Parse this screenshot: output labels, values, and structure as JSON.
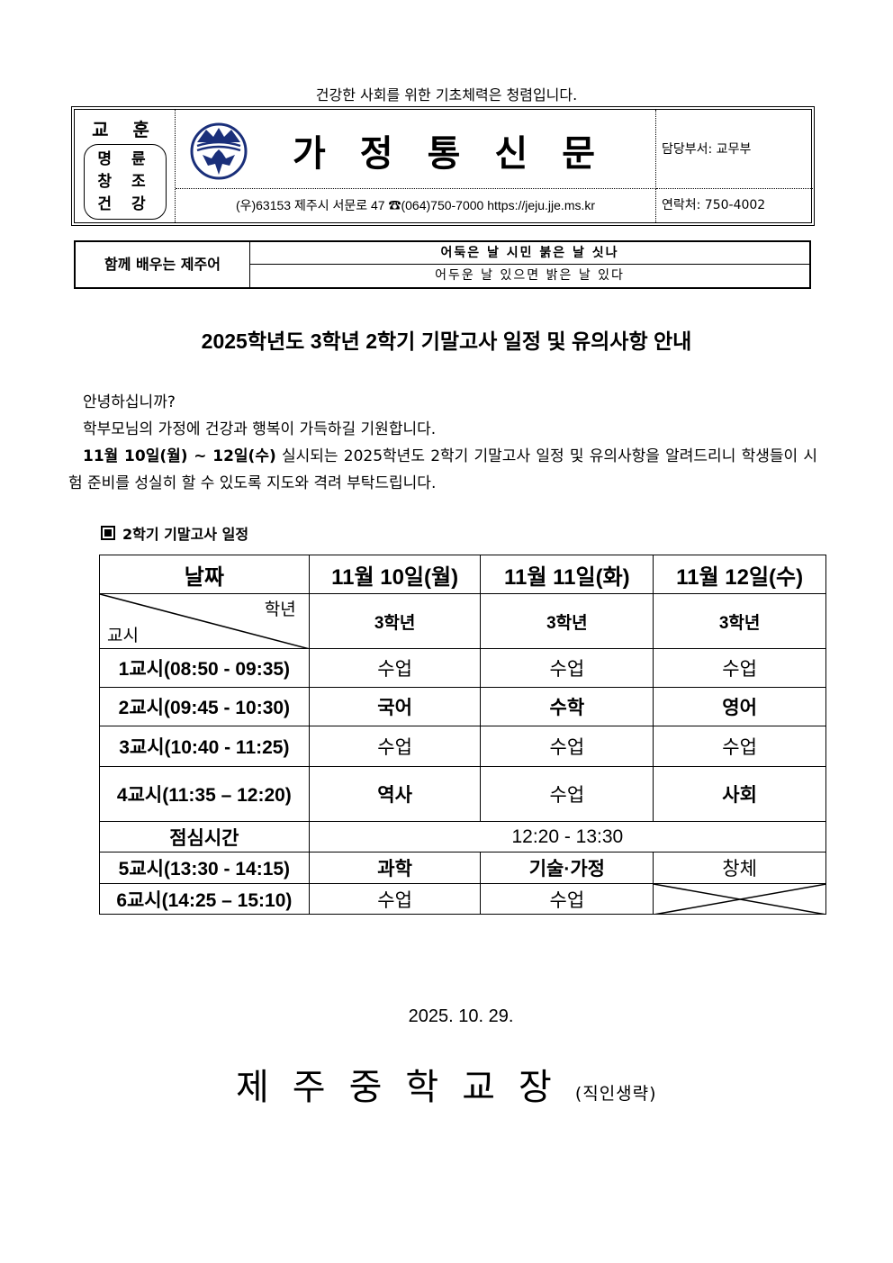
{
  "motto": "건강한 사회를 위한 기초체력은 청렴입니다.",
  "header": {
    "school_motto_label": "교 훈",
    "school_motto": [
      "명 륜",
      "창 조",
      "건 강"
    ],
    "title": "가정통신문",
    "address": "(우)63153 제주시 서문로 47 ☎(064)750-7000   https://jeju.jje.ms.kr",
    "department": "담당부서: 교무부",
    "contact": "연락처: 750-4002",
    "logo_color": "#1a2f7a"
  },
  "jeju_dialect": {
    "label": "함께 배우는 제주어",
    "dialect": "어둑은 날 시민 붉은 날 싯나",
    "standard": "어두운 날 있으면 밝은 날 있다"
  },
  "heading": "2025학년도 3학년 2학기 기말고사 일정 및 유의사항 안내",
  "body": {
    "p1": "안녕하십니까?",
    "p2": "학부모님의 가정에 건강과 행복이 가득하길 기원합니다.",
    "p3_bold": "11월 10일(월) ~ 12일(수)",
    "p3_rest": " 실시되는 2025학년도 2학기 기말고사 일정 및 유의사항을 알려드리니 학생들이 시험 준비를 성실히 할 수 있도록 지도와 격려 부탁드립니다."
  },
  "section_title": "2학기 기말고사 일정",
  "schedule": {
    "date_label": "날짜",
    "grade_label": "학년",
    "period_label": "교시",
    "dates": [
      "11월 10일(월)",
      "11월 11일(화)",
      "11월 12일(수)"
    ],
    "grades": [
      "3학년",
      "3학년",
      "3학년"
    ],
    "rows": [
      {
        "period": "1교시(08:50 - 09:35)",
        "cells": [
          "수업",
          "수업",
          "수업"
        ]
      },
      {
        "period": "2교시(09:45 - 10:30)",
        "cells": [
          "국어",
          "수학",
          "영어"
        ]
      },
      {
        "period": "3교시(10:40 - 11:25)",
        "cells": [
          "수업",
          "수업",
          "수업"
        ]
      },
      {
        "period": "4교시(11:35 – 12:20)",
        "cells": [
          "역사",
          "수업",
          "사회"
        ]
      },
      {
        "period": "점심시간",
        "span": "12:20 - 13:30"
      },
      {
        "period": "5교시(13:30 - 14:15)",
        "cells": [
          "과학",
          "기술·가정",
          "창체"
        ]
      },
      {
        "period": "6교시(14:25 – 15:10)",
        "cells": [
          "수업",
          "수업",
          ""
        ]
      }
    ]
  },
  "footer": {
    "date": "2025. 10. 29.",
    "principal": "제주중학교장",
    "seal_note": "(직인생략)"
  }
}
